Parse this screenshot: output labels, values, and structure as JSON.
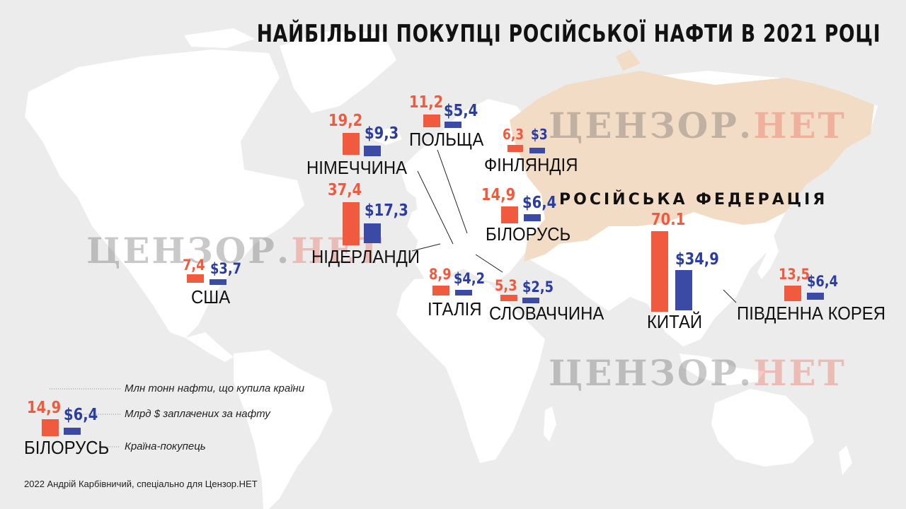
{
  "title": "НАЙБІЛЬШІ ПОКУПЦІ РОСІЙСЬКОЇ НАФТИ В 2021 РОЦІ",
  "watermark": {
    "part1": "ЦЕНЗОР.",
    "part2": "НЕТ"
  },
  "russia_label": "РОСІЙСЬКА ФЕДЕРАЦІЯ",
  "colors": {
    "tons": "#f05a3f",
    "dollars": "#3a4aa5",
    "russia": "#f3dcc6",
    "land": "#ffffff",
    "sea": "#ececec"
  },
  "countries": [
    {
      "name": "НІМЕЧЧИНА",
      "tons": "19,2",
      "usd": "$9,3",
      "tons_value": 19.2,
      "usd_value": 9.3
    },
    {
      "name": "ПОЛЬЩА",
      "tons": "11,2",
      "usd": "$5,4",
      "tons_value": 11.2,
      "usd_value": 5.4
    },
    {
      "name": "ФІНЛЯНДІЯ",
      "tons": "6,3",
      "usd": "$3",
      "tons_value": 6.3,
      "usd_value": 3
    },
    {
      "name": "НІДЕРЛАНДИ",
      "tons": "37,4",
      "usd": "$17,3",
      "tons_value": 37.4,
      "usd_value": 17.3
    },
    {
      "name": "БІЛОРУСЬ",
      "tons": "14,9",
      "usd": "$6,4",
      "tons_value": 14.9,
      "usd_value": 6.4
    },
    {
      "name": "США",
      "tons": "7,4",
      "usd": "$3,7",
      "tons_value": 7.4,
      "usd_value": 3.7
    },
    {
      "name": "ІТАЛІЯ",
      "tons": "8,9",
      "usd": "$4,2",
      "tons_value": 8.9,
      "usd_value": 4.2
    },
    {
      "name": "СЛОВАЧЧИНА",
      "tons": "5,3",
      "usd": "$2,5",
      "tons_value": 5.3,
      "usd_value": 2.5
    },
    {
      "name": "КИТАЙ",
      "tons": "70.1",
      "usd": "$34,9",
      "tons_value": 70.1,
      "usd_value": 34.9
    },
    {
      "name": "ПІВДЕННА КОРЕЯ",
      "tons": "13,5",
      "usd": "$6,4",
      "tons_value": 13.5,
      "usd_value": 6.4
    }
  ],
  "legend": {
    "tons": "14,9",
    "usd": "$6,4",
    "tons_value": 14.9,
    "usd_value": 6.4,
    "country": "БІЛОРУСЬ",
    "tons_desc": "Млн тонн нафти, що купила країни",
    "usd_desc": "Млрд $ заплачених за нафту",
    "country_desc": "Країна-покупець"
  },
  "credit": "2022 Андрій Карбівничий, спеціально для Цензор.НЕТ"
}
